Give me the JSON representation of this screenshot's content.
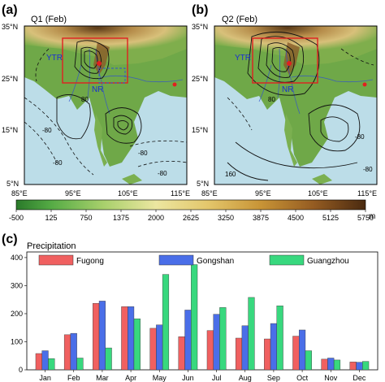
{
  "maps": {
    "a": {
      "letter": "(a)",
      "title": "Q1 (Feb)",
      "contour_labels": [
        "-80",
        "-80",
        "80",
        "-80",
        "-80"
      ],
      "region_labels": {
        "ytr": "YTR",
        "nr": "NR"
      }
    },
    "b": {
      "letter": "(b)",
      "title": "Q2 (Feb)",
      "contour_labels": [
        "-80",
        "-80",
        "160",
        "80"
      ],
      "region_labels": {
        "ytr": "YTR",
        "nr": "NR"
      }
    },
    "lat_ticks": [
      "35°N",
      "25°N",
      "15°N",
      "5°N"
    ],
    "lon_ticks": [
      "85°E",
      "95°E",
      "105°E",
      "115°E"
    ],
    "colors": {
      "land_low": "#5a8f3a",
      "land_mid": "#c9c46a",
      "land_high": "#6b4420",
      "sea": "#bcdde8",
      "box": "#e02020",
      "rivers": "#3050d0"
    }
  },
  "colorbar": {
    "ticks": [
      "-500",
      "125",
      "750",
      "1375",
      "2000",
      "2625",
      "3250",
      "3875",
      "4500",
      "5125",
      "5750"
    ],
    "unit": "m",
    "colors": [
      "#2a7a2a",
      "#3f9a3a",
      "#6bb84a",
      "#a6d06a",
      "#d8e08c",
      "#eee7a2",
      "#e9d37c",
      "#d9b14d",
      "#c48a2f",
      "#9e6422",
      "#6e4019",
      "#4a2a10"
    ]
  },
  "chart_data": {
    "type": "bar",
    "panel_letter": "(c)",
    "title": "Precipitation",
    "categories": [
      "Jan",
      "Feb",
      "Mar",
      "Apr",
      "May",
      "Jun",
      "Jul",
      "Aug",
      "Sep",
      "Oct",
      "Nov",
      "Dec"
    ],
    "series": [
      {
        "name": "Fugong",
        "color": "#f06060",
        "values": [
          58,
          125,
          237,
          225,
          148,
          118,
          140,
          113,
          110,
          120,
          38,
          28
        ]
      },
      {
        "name": "Gongshan",
        "color": "#4a6ee8",
        "values": [
          68,
          130,
          245,
          225,
          160,
          213,
          198,
          157,
          165,
          142,
          42,
          27
        ]
      },
      {
        "name": "Guangzhou",
        "color": "#38d87e",
        "values": [
          40,
          42,
          78,
          182,
          340,
          375,
          222,
          258,
          228,
          68,
          35,
          30
        ]
      }
    ],
    "ylim": [
      0,
      420
    ],
    "yticks": [
      "0",
      "100",
      "200",
      "300",
      "400"
    ],
    "legend_position": "top"
  }
}
